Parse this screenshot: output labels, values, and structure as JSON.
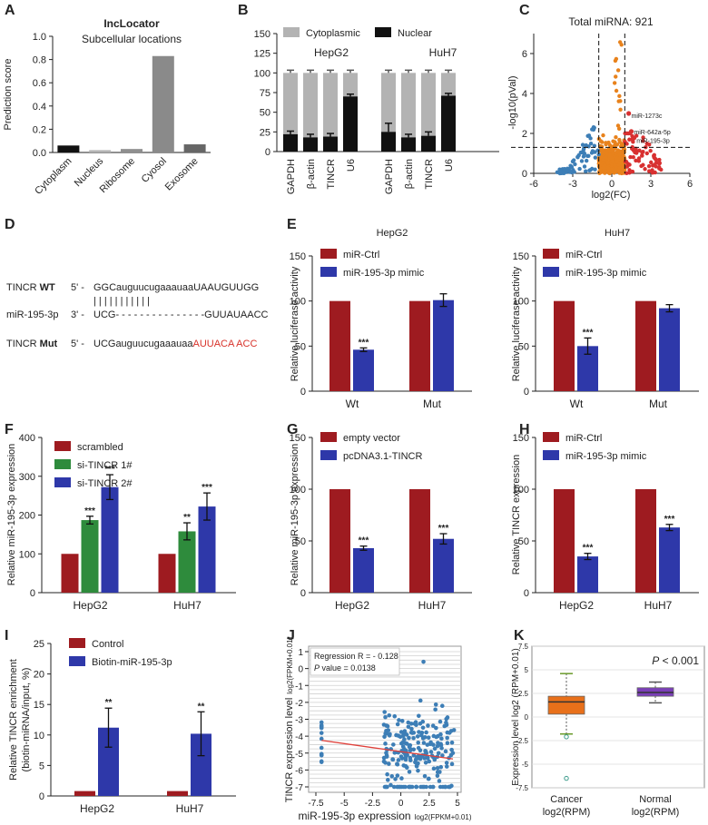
{
  "colors": {
    "red": "#9e1b20",
    "blue": "#2e38a9",
    "green": "#2e8b3c",
    "black": "#111111",
    "light_gray": "#b3b3b3",
    "orange": "#e8821c",
    "scatter_blue": "#3d7eb6",
    "volcano_red": "#d83030",
    "purple": "#7b3fb8",
    "box_orange": "#e8701a",
    "trend_red": "#e0403a"
  },
  "panels": {
    "A": "A",
    "B": "B",
    "C": "C",
    "D": "D",
    "E": "E",
    "F": "F",
    "G": "G",
    "H": "H",
    "I": "I",
    "J": "J",
    "K": "K"
  },
  "sequences": {
    "tincr_wt_prefix": "TINCR ",
    "tincr_wt_bold": "WT",
    "tincr_wt_5": "5' - ",
    "tincr_wt_seq": "GGCauguucugaaauaaUAAUGUUGG",
    "mir_label": "miR-195-3p",
    "mir_3": "3' - ",
    "mir_seq": "UCG- - - - - - - - - - - - - - -GUUAUAACC",
    "tincr_mut_prefix": "TINCR ",
    "tincr_mut_bold": "Mut",
    "tincr_mut_5": "5' - ",
    "tincr_mut_seq_black": "UCGauguucugaaauaa",
    "tincr_mut_seq_red": "AUUACA ACC",
    "pairs": "| | |                             | | | | | | | |"
  },
  "chart_data": [
    {
      "panel": "A",
      "type": "bar",
      "title": "IncLocator",
      "subtitle": "Subcellular locations",
      "ylabel": "Prediction score",
      "ylim": [
        0,
        1.0
      ],
      "yticks": [
        "0.0",
        "0.2",
        "0.4",
        "0.6",
        "0.8",
        "1.0"
      ],
      "categories": [
        "Cytoplasm",
        "Nucleus",
        "Ribosome",
        "Cyosol",
        "Exosome"
      ],
      "values": [
        0.06,
        0.02,
        0.03,
        0.83,
        0.07
      ],
      "bar_colors": [
        "#111111",
        "#b3b3b3",
        "#8f8f8f",
        "#8a8a8a",
        "#666666"
      ]
    },
    {
      "panel": "B",
      "type": "bar",
      "ylabel": "Percent of transcript abundance (%)",
      "ylim": [
        0,
        150
      ],
      "yticks": [
        "0",
        "25",
        "50",
        "75",
        "100",
        "125",
        "150"
      ],
      "groups": [
        "HepG2",
        "HuH7"
      ],
      "categories": [
        "GAPDH",
        "β-actin",
        "TINCR",
        "U6",
        "GAPDH",
        "β-actin",
        "TINCR",
        "U6"
      ],
      "series": [
        {
          "name": "Cytoplasmic",
          "values": [
            100,
            100,
            100,
            100,
            100,
            100,
            100,
            100
          ]
        },
        {
          "name": "Nuclear",
          "values": [
            22,
            18,
            19,
            70,
            25,
            18,
            20,
            71
          ]
        }
      ],
      "errors": [
        4,
        4,
        4,
        3,
        11,
        4,
        5,
        3
      ]
    },
    {
      "panel": "C",
      "type": "scatter",
      "title": "Total miRNA: 921",
      "xlabel": "log2(FC)",
      "ylabel": "-log10(pVal)",
      "xlim": [
        -6,
        6
      ],
      "ylim": [
        0,
        7
      ],
      "xticks": [
        "-6",
        "-3",
        "0",
        "3",
        "6"
      ],
      "yticks": [
        "0",
        "2",
        "4",
        "6"
      ],
      "annotations": [
        "miR-1273c",
        "miR-642a-5p",
        "miR-195-3p"
      ]
    },
    {
      "panel": "E1",
      "type": "bar",
      "title": "HepG2",
      "ylabel": "Relative luciferase activity",
      "ylim": [
        0,
        150
      ],
      "yticks": [
        "0",
        "50",
        "100",
        "150"
      ],
      "categories": [
        "Wt",
        "Mut"
      ],
      "series": [
        {
          "name": "miR-Ctrl",
          "values": [
            100,
            100
          ],
          "errors": [
            0,
            0
          ],
          "sig": [
            "",
            ""
          ]
        },
        {
          "name": "miR-195-3p mimic",
          "values": [
            46,
            101
          ],
          "errors": [
            2,
            7
          ],
          "sig": [
            "***",
            ""
          ]
        }
      ]
    },
    {
      "panel": "E2",
      "type": "bar",
      "title": "HuH7",
      "ylabel": "Relative luciferase activity",
      "ylim": [
        0,
        150
      ],
      "yticks": [
        "0",
        "50",
        "100",
        "150"
      ],
      "categories": [
        "Wt",
        "Mut"
      ],
      "series": [
        {
          "name": "miR-Ctrl",
          "values": [
            100,
            100
          ],
          "errors": [
            0,
            0
          ],
          "sig": [
            "",
            ""
          ]
        },
        {
          "name": "miR-195-3p mimic",
          "values": [
            50,
            92
          ],
          "errors": [
            9,
            4
          ],
          "sig": [
            "***",
            ""
          ]
        }
      ]
    },
    {
      "panel": "F",
      "type": "bar",
      "ylabel": "Relative miR-195-3p expression",
      "ylim": [
        0,
        400
      ],
      "yticks": [
        "0",
        "100",
        "200",
        "300",
        "400"
      ],
      "categories": [
        "HepG2",
        "HuH7"
      ],
      "series": [
        {
          "name": "scrambled",
          "values": [
            100,
            100
          ],
          "errors": [
            0,
            0
          ],
          "sig": [
            "",
            ""
          ]
        },
        {
          "name": "si-TINCR 1#",
          "values": [
            187,
            158
          ],
          "errors": [
            10,
            22
          ],
          "sig": [
            "***",
            "**"
          ]
        },
        {
          "name": "si-TINCR 2#",
          "values": [
            272,
            222
          ],
          "errors": [
            32,
            35
          ],
          "sig": [
            "***",
            "***"
          ]
        }
      ]
    },
    {
      "panel": "G",
      "type": "bar",
      "ylabel": "Relative miR-195-3p expression",
      "ylim": [
        0,
        150
      ],
      "yticks": [
        "0",
        "50",
        "100",
        "150"
      ],
      "categories": [
        "HepG2",
        "HuH7"
      ],
      "series": [
        {
          "name": "empty vector",
          "values": [
            100,
            100
          ],
          "errors": [
            0,
            0
          ],
          "sig": [
            "",
            ""
          ]
        },
        {
          "name": "pcDNA3.1-TINCR",
          "values": [
            43,
            52
          ],
          "errors": [
            2,
            5
          ],
          "sig": [
            "***",
            "***"
          ]
        }
      ]
    },
    {
      "panel": "H",
      "type": "bar",
      "ylabel": "Relative TINCR expression",
      "ylim": [
        0,
        150
      ],
      "yticks": [
        "0",
        "50",
        "100",
        "150"
      ],
      "categories": [
        "HepG2",
        "HuH7"
      ],
      "series": [
        {
          "name": "miR-Ctrl",
          "values": [
            100,
            100
          ],
          "errors": [
            0,
            0
          ],
          "sig": [
            "",
            ""
          ]
        },
        {
          "name": "miR-195-3p mimic",
          "values": [
            35,
            63
          ],
          "errors": [
            3,
            3
          ],
          "sig": [
            "***",
            "***"
          ]
        }
      ]
    },
    {
      "panel": "I",
      "type": "bar",
      "ylabel": "Relative TINCR enrichment (biotin-miRNA/input, %)",
      "ylim": [
        0,
        25
      ],
      "yticks": [
        "0",
        "5",
        "10",
        "15",
        "20",
        "25"
      ],
      "categories": [
        "HepG2",
        "HuH7"
      ],
      "series": [
        {
          "name": "Control",
          "values": [
            0.8,
            0.8
          ],
          "errors": [
            0,
            0
          ],
          "sig": [
            "",
            ""
          ]
        },
        {
          "name": "Biotin-miR-195-3p",
          "values": [
            11.2,
            10.2
          ],
          "errors": [
            3.2,
            3.6
          ],
          "sig": [
            "**",
            "**"
          ]
        }
      ]
    },
    {
      "panel": "J",
      "type": "scatter",
      "xlabel": "miR-195-3p expression",
      "xlabel_sub": "log2(FPKM+0.01)",
      "ylabel": "TINCR expression level",
      "ylabel_sub": "log2(FPKM+0.01)",
      "xlim": [
        -7.5,
        5
      ],
      "ylim": [
        -7,
        1
      ],
      "xticks": [
        "-7.5",
        "-5",
        "-2.5",
        "0",
        "2.5",
        "5"
      ],
      "yticks": [
        "1",
        "0",
        "-1",
        "-2",
        "-3",
        "-4",
        "-5",
        "-6",
        "-7"
      ],
      "stats_r": "Regression R = - 0.128",
      "stats_p_label": "P",
      "stats_p_value": " value = 0.0138",
      "regression": {
        "x": [
          -7,
          4.6
        ],
        "y": [
          -4.25,
          -5.35
        ]
      }
    },
    {
      "panel": "K",
      "type": "box",
      "ylabel": "Expression level log2 (RPM+0.01)",
      "ylim": [
        -7.5,
        7.5
      ],
      "yticks": [
        "7.5",
        "5",
        "2.5",
        "0",
        "-2.5",
        "-5",
        "-7.5"
      ],
      "categories": [
        "Cancer",
        "Normal"
      ],
      "category_subs": [
        "log2(RPM)",
        "log2(RPM)"
      ],
      "boxes": [
        {
          "name": "Cancer",
          "whisker_low": -1.8,
          "q1": 0.3,
          "median": 1.6,
          "q3": 2.2,
          "whisker_high": 4.6,
          "outliers": [
            -2.1,
            -6.5
          ]
        },
        {
          "name": "Normal",
          "whisker_low": 1.5,
          "q1": 2.2,
          "median": 2.6,
          "q3": 3.1,
          "whisker_high": 3.7,
          "outliers": []
        }
      ],
      "pvalue_label": "P",
      "pvalue_text": " < 0.001"
    }
  ]
}
